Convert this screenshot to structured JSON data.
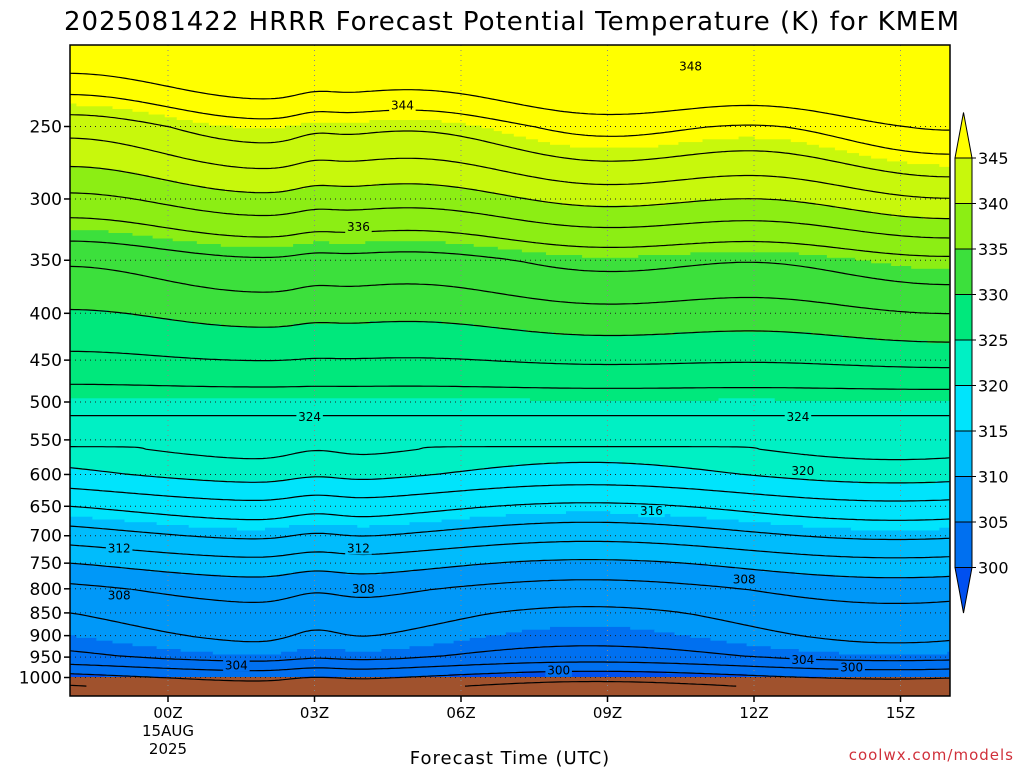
{
  "chart_data": {
    "type": "heatmap",
    "title": "2025081422 HRRR Forecast Potential Temperature (K) for KMEM",
    "xlabel": "Forecast Time (UTC)",
    "ylabel": "",
    "y_scale": "log",
    "y_inverted": true,
    "y_ticks": [
      250,
      300,
      350,
      400,
      450,
      500,
      550,
      600,
      650,
      700,
      750,
      800,
      850,
      900,
      950,
      1000
    ],
    "x_range": [
      "2025-08-14 22Z",
      "2025-08-15 16Z"
    ],
    "x_ticks": [
      {
        "time": "2025-08-15 00Z",
        "label": "00Z",
        "sub": [
          "15AUG",
          "2025"
        ]
      },
      {
        "time": "2025-08-15 03Z",
        "label": "03Z"
      },
      {
        "time": "2025-08-15 06Z",
        "label": "06Z"
      },
      {
        "time": "2025-08-15 09Z",
        "label": "09Z"
      },
      {
        "time": "2025-08-15 12Z",
        "label": "12Z"
      },
      {
        "time": "2025-08-15 15Z",
        "label": "15Z"
      }
    ],
    "grid": true,
    "colorbar": {
      "levels": [
        300,
        305,
        310,
        315,
        320,
        325,
        330,
        335,
        340,
        345
      ],
      "colors": [
        "#0050f0",
        "#0070f0",
        "#0098f8",
        "#00bcfc",
        "#00e4fc",
        "#00f0c4",
        "#00e87c",
        "#3ce03c",
        "#8cee14",
        "#c8f80c",
        "#ffff00"
      ],
      "extend": "both",
      "placement": "right"
    },
    "ground_color": "#a0522d",
    "contour_levels": [
      298,
      300,
      302,
      304,
      306,
      308,
      310,
      312,
      314,
      316,
      318,
      320,
      322,
      324,
      326,
      328,
      330,
      332,
      334,
      336,
      338,
      340,
      342,
      344,
      346,
      348
    ],
    "contour_labels": [
      {
        "value": "348",
        "time": "2025-08-15 10.7Z",
        "p": 215
      },
      {
        "value": "344",
        "time": "2025-08-15 04.8Z",
        "p": 237
      },
      {
        "value": "336",
        "time": "2025-08-15 03.9Z",
        "p": 322
      },
      {
        "value": "324",
        "time": "2025-08-15 02.9Z",
        "p": 519
      },
      {
        "value": "324",
        "time": "2025-08-15 12.9Z",
        "p": 519
      },
      {
        "value": "320",
        "time": "2025-08-15 13.0Z",
        "p": 595
      },
      {
        "value": "316",
        "time": "2025-08-15 09.9Z",
        "p": 658
      },
      {
        "value": "312",
        "time": "2025-08-14 23.0Z",
        "p": 723
      },
      {
        "value": "312",
        "time": "2025-08-15 03.9Z",
        "p": 723
      },
      {
        "value": "308",
        "time": "2025-08-14 23.0Z",
        "p": 814
      },
      {
        "value": "308",
        "time": "2025-08-15 04.0Z",
        "p": 800
      },
      {
        "value": "308",
        "time": "2025-08-15 11.8Z",
        "p": 781
      },
      {
        "value": "304",
        "time": "2025-08-15 01.4Z",
        "p": 970
      },
      {
        "value": "304",
        "time": "2025-08-15 13.0Z",
        "p": 957
      },
      {
        "value": "300",
        "time": "2025-08-15 08.0Z",
        "p": 983
      },
      {
        "value": "300",
        "time": "2025-08-15 14.0Z",
        "p": 975
      }
    ]
  },
  "credit": "coolwx.com/models"
}
